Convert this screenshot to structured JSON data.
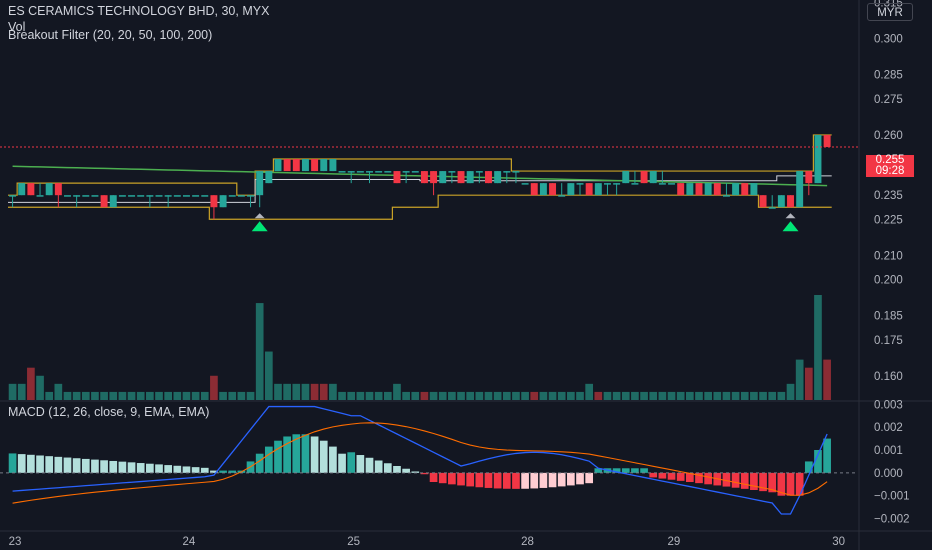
{
  "header": {
    "symbol_line": "ES CERAMICS TECHNOLOGY BHD, 30, MYX",
    "vol_label": "Vol",
    "indicator_label": "Breakout Filter (20, 20, 50, 100, 200)",
    "macd_label": "MACD (12, 26, close, 9, EMA, EMA)",
    "currency": "MYR"
  },
  "price_tag": {
    "price": "0.255",
    "countdown": "09:28",
    "color": "#f23645"
  },
  "colors": {
    "up": "#26a69a",
    "down": "#f23645",
    "green_ma": "#4caf50",
    "channel": "#c9a227",
    "macd_line": "#2962ff",
    "signal_line": "#ff6d00",
    "hist_light": "#b2dfdb",
    "hist_pink": "#ffcdd2"
  },
  "chart_data": {
    "type": "candlestick",
    "x_tick_labels": [
      "23",
      "24",
      "25",
      "28",
      "29",
      "30"
    ],
    "price_axis_labels": [
      "0.315",
      "0.300",
      "0.285",
      "0.275",
      "0.260",
      "0.235",
      "0.225",
      "0.210",
      "0.200",
      "0.185",
      "0.175",
      "0.160"
    ],
    "macd_axis_labels": [
      "0.003",
      "0.002",
      "0.001",
      "0.000",
      "−0.001",
      "−0.002"
    ],
    "price_range": [
      0.15,
      0.316
    ],
    "macd_range": [
      -0.0025,
      0.0031
    ],
    "last_price": 0.255,
    "candles": [
      [
        0.235,
        0.235,
        0.23,
        0.235
      ],
      [
        0.235,
        0.24,
        0.235,
        0.24
      ],
      [
        0.24,
        0.24,
        0.235,
        0.235
      ],
      [
        0.235,
        0.24,
        0.235,
        0.235
      ],
      [
        0.235,
        0.24,
        0.235,
        0.24
      ],
      [
        0.24,
        0.24,
        0.23,
        0.235
      ],
      [
        0.235,
        0.235,
        0.235,
        0.235
      ],
      [
        0.235,
        0.235,
        0.23,
        0.235
      ],
      [
        0.235,
        0.235,
        0.235,
        0.235
      ],
      [
        0.235,
        0.235,
        0.235,
        0.235
      ],
      [
        0.235,
        0.235,
        0.23,
        0.23
      ],
      [
        0.23,
        0.235,
        0.23,
        0.235
      ],
      [
        0.235,
        0.235,
        0.235,
        0.235
      ],
      [
        0.235,
        0.235,
        0.235,
        0.235
      ],
      [
        0.235,
        0.235,
        0.235,
        0.235
      ],
      [
        0.235,
        0.235,
        0.23,
        0.235
      ],
      [
        0.235,
        0.235,
        0.235,
        0.235
      ],
      [
        0.235,
        0.235,
        0.23,
        0.235
      ],
      [
        0.235,
        0.235,
        0.235,
        0.235
      ],
      [
        0.235,
        0.235,
        0.235,
        0.235
      ],
      [
        0.235,
        0.235,
        0.235,
        0.235
      ],
      [
        0.235,
        0.235,
        0.235,
        0.235
      ],
      [
        0.235,
        0.235,
        0.225,
        0.23
      ],
      [
        0.23,
        0.235,
        0.23,
        0.235
      ],
      [
        0.235,
        0.235,
        0.235,
        0.235
      ],
      [
        0.235,
        0.235,
        0.235,
        0.235
      ],
      [
        0.235,
        0.235,
        0.23,
        0.235
      ],
      [
        0.235,
        0.245,
        0.23,
        0.245
      ],
      [
        0.24,
        0.245,
        0.24,
        0.245
      ],
      [
        0.245,
        0.25,
        0.245,
        0.25
      ],
      [
        0.25,
        0.25,
        0.245,
        0.245
      ],
      [
        0.25,
        0.25,
        0.245,
        0.245
      ],
      [
        0.245,
        0.25,
        0.245,
        0.25
      ],
      [
        0.25,
        0.25,
        0.245,
        0.245
      ],
      [
        0.245,
        0.25,
        0.245,
        0.25
      ],
      [
        0.245,
        0.25,
        0.245,
        0.25
      ],
      [
        0.245,
        0.245,
        0.245,
        0.245
      ],
      [
        0.245,
        0.245,
        0.24,
        0.245
      ],
      [
        0.245,
        0.245,
        0.245,
        0.245
      ],
      [
        0.245,
        0.245,
        0.24,
        0.245
      ],
      [
        0.245,
        0.245,
        0.245,
        0.245
      ],
      [
        0.245,
        0.245,
        0.245,
        0.245
      ],
      [
        0.245,
        0.245,
        0.24,
        0.24
      ],
      [
        0.245,
        0.245,
        0.24,
        0.245
      ],
      [
        0.245,
        0.245,
        0.245,
        0.245
      ],
      [
        0.245,
        0.245,
        0.24,
        0.24
      ],
      [
        0.245,
        0.245,
        0.235,
        0.24
      ],
      [
        0.24,
        0.245,
        0.24,
        0.245
      ],
      [
        0.245,
        0.245,
        0.24,
        0.245
      ],
      [
        0.245,
        0.245,
        0.24,
        0.24
      ],
      [
        0.24,
        0.245,
        0.24,
        0.245
      ],
      [
        0.245,
        0.245,
        0.24,
        0.245
      ],
      [
        0.245,
        0.245,
        0.24,
        0.24
      ],
      [
        0.24,
        0.245,
        0.24,
        0.245
      ],
      [
        0.245,
        0.245,
        0.24,
        0.245
      ],
      [
        0.245,
        0.245,
        0.24,
        0.245
      ],
      [
        0.24,
        0.24,
        0.24,
        0.24
      ],
      [
        0.24,
        0.24,
        0.235,
        0.235
      ],
      [
        0.235,
        0.24,
        0.235,
        0.24
      ],
      [
        0.24,
        0.24,
        0.235,
        0.235
      ],
      [
        0.235,
        0.24,
        0.235,
        0.235
      ],
      [
        0.235,
        0.24,
        0.235,
        0.24
      ],
      [
        0.24,
        0.24,
        0.235,
        0.24
      ],
      [
        0.24,
        0.24,
        0.235,
        0.235
      ],
      [
        0.235,
        0.24,
        0.235,
        0.24
      ],
      [
        0.24,
        0.24,
        0.235,
        0.24
      ],
      [
        0.24,
        0.24,
        0.235,
        0.24
      ],
      [
        0.24,
        0.245,
        0.24,
        0.245
      ],
      [
        0.24,
        0.245,
        0.24,
        0.24
      ],
      [
        0.245,
        0.245,
        0.24,
        0.24
      ],
      [
        0.24,
        0.245,
        0.24,
        0.245
      ],
      [
        0.24,
        0.245,
        0.24,
        0.24
      ],
      [
        0.24,
        0.24,
        0.24,
        0.24
      ],
      [
        0.24,
        0.24,
        0.235,
        0.235
      ],
      [
        0.235,
        0.24,
        0.235,
        0.24
      ],
      [
        0.24,
        0.24,
        0.235,
        0.235
      ],
      [
        0.235,
        0.24,
        0.235,
        0.24
      ],
      [
        0.24,
        0.24,
        0.235,
        0.235
      ],
      [
        0.235,
        0.24,
        0.235,
        0.235
      ],
      [
        0.235,
        0.24,
        0.235,
        0.24
      ],
      [
        0.24,
        0.24,
        0.235,
        0.235
      ],
      [
        0.235,
        0.24,
        0.235,
        0.24
      ],
      [
        0.235,
        0.235,
        0.23,
        0.23
      ],
      [
        0.23,
        0.235,
        0.23,
        0.23
      ],
      [
        0.23,
        0.235,
        0.23,
        0.235
      ],
      [
        0.235,
        0.235,
        0.23,
        0.23
      ],
      [
        0.23,
        0.245,
        0.23,
        0.245
      ],
      [
        0.245,
        0.245,
        0.235,
        0.24
      ],
      [
        0.24,
        0.26,
        0.24,
        0.26
      ],
      [
        0.26,
        0.26,
        0.255,
        0.255
      ]
    ],
    "volume": [
      2,
      2,
      4,
      3,
      1,
      2,
      1,
      1,
      1,
      1,
      1,
      1,
      1,
      1,
      1,
      1,
      1,
      1,
      1,
      1,
      1,
      1,
      3,
      1,
      1,
      1,
      1,
      12,
      6,
      2,
      2,
      2,
      2,
      2,
      2,
      2,
      1,
      1,
      1,
      1,
      1,
      1,
      2,
      1,
      1,
      1,
      1,
      1,
      1,
      1,
      1,
      1,
      1,
      1,
      1,
      1,
      1,
      1,
      1,
      1,
      1,
      1,
      1,
      2,
      1,
      1,
      1,
      1,
      1,
      1,
      1,
      1,
      1,
      1,
      1,
      1,
      1,
      1,
      1,
      1,
      1,
      1,
      1,
      1,
      1,
      2,
      5,
      4,
      13,
      5
    ],
    "volume_colors_down": [
      2,
      22,
      33,
      34,
      45,
      57,
      64,
      87,
      89
    ],
    "breakout_up_at": [
      27,
      85
    ],
    "breakout_down_at": []
  }
}
